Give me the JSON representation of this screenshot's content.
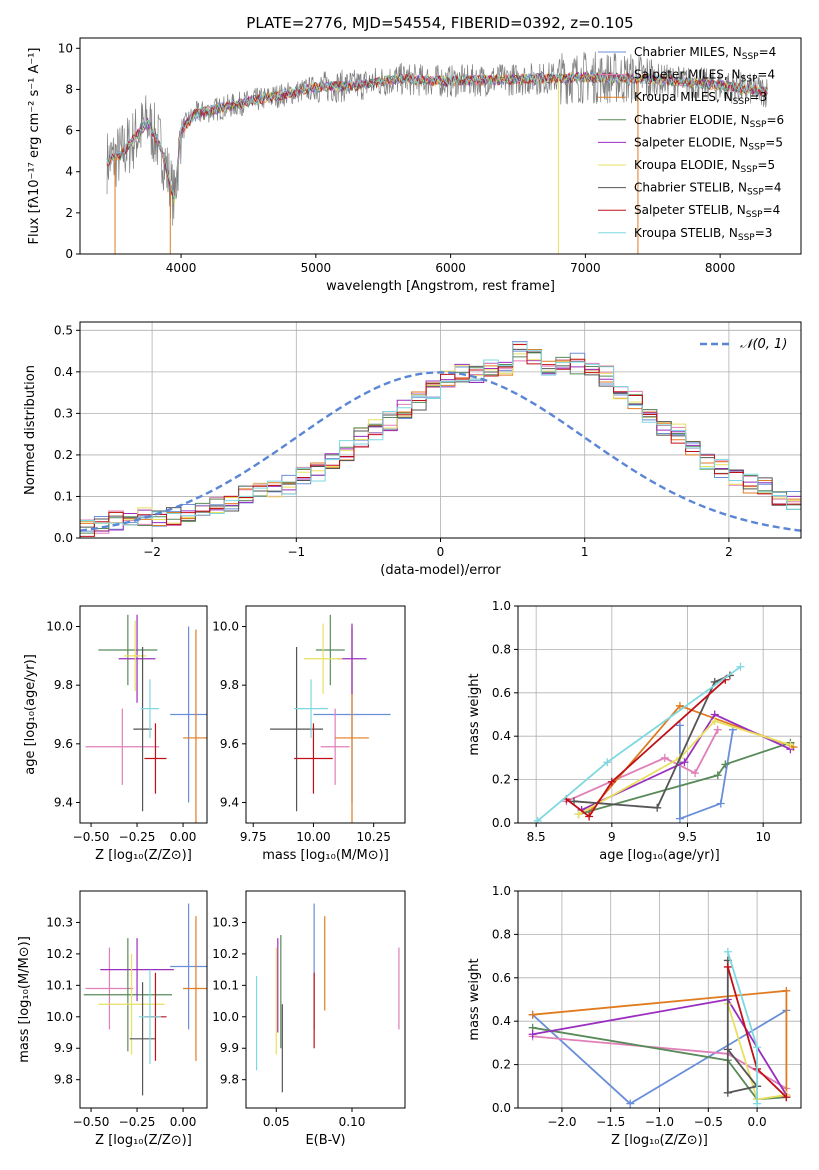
{
  "figure": {
    "title": "PLATE=2776, MJD=54554, FIBERID=0392, z=0.105"
  },
  "colors": {
    "chabrier_miles": "#6a8fd8",
    "salpeter_miles": "#6a8fd8",
    "kroupa_miles": "#e07b21",
    "chabrier_elodie": "#5a8a5a",
    "salpeter_elodie": "#9a2fbf",
    "kroupa_elodie": "#e8e060",
    "chabrier_stelib": "#555555",
    "salpeter_stelib": "#c0101a",
    "kroupa_stelib": "#7fd8e0",
    "data_gray": "#808080",
    "pink": "#e07fb8",
    "grid": "#b0b0b0"
  },
  "legend_entries": [
    {
      "base": "Chabrier MILES, N",
      "sub": "SSP",
      "tail": "=4",
      "color": "#6a8fd8"
    },
    {
      "base": "Salpeter MILES, N",
      "sub": "SSP",
      "tail": "=4",
      "color": "#e07fb8"
    },
    {
      "base": "Kroupa MILES, N",
      "sub": "SSP",
      "tail": "=3",
      "color": "#e07b21"
    },
    {
      "base": "Chabrier ELODIE, N",
      "sub": "SSP",
      "tail": "=6",
      "color": "#5a8a5a"
    },
    {
      "base": "Salpeter ELODIE, N",
      "sub": "SSP",
      "tail": "=5",
      "color": "#9a2fbf"
    },
    {
      "base": "Kroupa ELODIE, N",
      "sub": "SSP",
      "tail": "=5",
      "color": "#e8e060"
    },
    {
      "base": "Chabrier STELIB, N",
      "sub": "SSP",
      "tail": "=4",
      "color": "#555555"
    },
    {
      "base": "Salpeter STELIB, N",
      "sub": "SSP",
      "tail": "=4",
      "color": "#c0101a"
    },
    {
      "base": "Kroupa STELIB, N",
      "sub": "SSP",
      "tail": "=3",
      "color": "#7fd8e0"
    }
  ],
  "chart_data": [
    {
      "type": "line",
      "id": "spectrum",
      "xlabel": "wavelength [Angstrom, rest frame]",
      "ylabel": "Flux [fλ10⁻¹⁷ erg cm⁻² s⁻¹ A⁻¹]",
      "xlim": [
        3250,
        8600
      ],
      "ylim": [
        0,
        10.5
      ],
      "xticks": [
        4000,
        5000,
        6000,
        7000,
        8000
      ],
      "yticks": [
        0,
        2,
        4,
        6,
        8,
        10
      ],
      "grid": false,
      "legend": "right",
      "continuum_x": [
        3450,
        3550,
        3650,
        3750,
        3850,
        3950,
        4000,
        4100,
        4300,
        4500,
        4800,
        5000,
        5300,
        5600,
        6000,
        6500,
        7000,
        7500,
        8000,
        8350
      ],
      "continuum_y": [
        4.5,
        4.8,
        5.6,
        6.4,
        5.2,
        2.6,
        6.0,
        6.8,
        7.1,
        7.4,
        7.8,
        8.1,
        8.2,
        8.5,
        8.4,
        8.5,
        8.6,
        8.5,
        8.2,
        7.9
      ]
    },
    {
      "type": "histogram",
      "id": "residuals",
      "xlabel": "(data-model)/error",
      "ylabel": "Normed distribution",
      "xlim": [
        -2.5,
        2.5
      ],
      "ylim": [
        0,
        0.52
      ],
      "xticks": [
        -2,
        -1,
        0,
        1,
        2
      ],
      "yticks": [
        0.0,
        0.1,
        0.2,
        0.3,
        0.4,
        0.5
      ],
      "grid": true,
      "legend": "top-right",
      "legend_label": "𝒩(0, 1)",
      "bin_width": 0.1,
      "bin_start": -2.5,
      "hist_values": [
        0.02,
        0.03,
        0.04,
        0.04,
        0.05,
        0.05,
        0.05,
        0.06,
        0.07,
        0.08,
        0.09,
        0.1,
        0.11,
        0.12,
        0.13,
        0.15,
        0.16,
        0.18,
        0.21,
        0.24,
        0.26,
        0.28,
        0.31,
        0.33,
        0.36,
        0.38,
        0.4,
        0.39,
        0.41,
        0.4,
        0.45,
        0.44,
        0.41,
        0.43,
        0.42,
        0.4,
        0.39,
        0.36,
        0.33,
        0.3,
        0.27,
        0.25,
        0.22,
        0.19,
        0.17,
        0.15,
        0.13,
        0.12,
        0.1,
        0.09,
        0.08,
        0.07,
        0.06,
        0.05,
        0.05,
        0.04,
        0.04,
        0.04,
        0.03,
        0.03
      ]
    },
    {
      "type": "errorbar",
      "id": "age_vs_z",
      "xlabel": "Z [log₁₀(Z/Z⊙)]",
      "ylabel": "age  [log₁₀(age/yr)]",
      "xlim": [
        -0.56,
        0.13
      ],
      "ylim": [
        9.33,
        10.07
      ],
      "xticks": [
        -0.5,
        -0.25,
        0.0
      ],
      "xtick_labels": [
        "−0.50",
        "−0.25",
        "0.00"
      ],
      "yticks": [
        9.4,
        9.6,
        9.8,
        10.0
      ],
      "points": [
        {
          "x": 0.03,
          "y": 9.7,
          "xerr": 0.1,
          "yerr": 0.3,
          "color": "#6a8fd8"
        },
        {
          "x": -0.33,
          "y": 9.59,
          "xerr": 0.2,
          "yerr": 0.13,
          "color": "#e07fb8"
        },
        {
          "x": 0.07,
          "y": 9.62,
          "xerr": 0.07,
          "yerr": 0.37,
          "color": "#e07b21"
        },
        {
          "x": -0.3,
          "y": 9.92,
          "xerr": 0.16,
          "yerr": 0.12,
          "color": "#5a8a5a"
        },
        {
          "x": -0.25,
          "y": 9.89,
          "xerr": 0.1,
          "yerr": 0.15,
          "color": "#9a2fbf"
        },
        {
          "x": -0.26,
          "y": 9.9,
          "xerr": 0.06,
          "yerr": 0.12,
          "color": "#e8e060"
        },
        {
          "x": -0.22,
          "y": 9.65,
          "xerr": 0.05,
          "yerr": 0.28,
          "color": "#555555"
        },
        {
          "x": -0.15,
          "y": 9.55,
          "xerr": 0.06,
          "yerr": 0.12,
          "color": "#c0101a"
        },
        {
          "x": -0.18,
          "y": 9.72,
          "xerr": 0.05,
          "yerr": 0.1,
          "color": "#7fd8e0"
        }
      ]
    },
    {
      "type": "errorbar",
      "id": "age_vs_mass",
      "xlabel": "mass [log₁₀(M/M⊙)]",
      "ylabel": "",
      "xlim": [
        9.72,
        10.38
      ],
      "ylim": [
        9.33,
        10.07
      ],
      "xticks": [
        9.75,
        10.0,
        10.25
      ],
      "xtick_labels": [
        "9.75",
        "10.00",
        "10.25"
      ],
      "yticks": [
        9.4,
        9.6,
        9.8,
        10.0
      ],
      "points": [
        {
          "x": 10.16,
          "y": 9.7,
          "xerr": 0.16,
          "yerr": 0.3,
          "color": "#6a8fd8"
        },
        {
          "x": 10.09,
          "y": 9.59,
          "xerr": 0.06,
          "yerr": 0.13,
          "color": "#e07fb8"
        },
        {
          "x": 10.16,
          "y": 9.62,
          "xerr": 0.07,
          "yerr": 0.37,
          "color": "#e07b21"
        },
        {
          "x": 10.07,
          "y": 9.92,
          "xerr": 0.06,
          "yerr": 0.12,
          "color": "#5a8a5a"
        },
        {
          "x": 10.16,
          "y": 9.89,
          "xerr": 0.06,
          "yerr": 0.12,
          "color": "#9a2fbf"
        },
        {
          "x": 10.04,
          "y": 9.89,
          "xerr": 0.08,
          "yerr": 0.12,
          "color": "#e8e060"
        },
        {
          "x": 9.93,
          "y": 9.65,
          "xerr": 0.11,
          "yerr": 0.28,
          "color": "#555555"
        },
        {
          "x": 10.0,
          "y": 9.55,
          "xerr": 0.08,
          "yerr": 0.12,
          "color": "#c0101a"
        },
        {
          "x": 9.99,
          "y": 9.72,
          "xerr": 0.07,
          "yerr": 0.1,
          "color": "#7fd8e0"
        }
      ]
    },
    {
      "type": "line",
      "id": "mass_weight_vs_age",
      "xlabel": "age  [log₁₀(age/yr)]",
      "ylabel": "mass weight",
      "xlim": [
        8.38,
        10.25
      ],
      "ylim": [
        0,
        1
      ],
      "xticks": [
        8.5,
        9.0,
        9.5,
        10.0
      ],
      "yticks": [
        0.0,
        0.2,
        0.4,
        0.6,
        0.8,
        1.0
      ],
      "grid": true,
      "series": [
        {
          "x": [
            9.45,
            9.45,
            9.72,
            9.8
          ],
          "y": [
            0.45,
            0.02,
            0.09,
            0.43
          ],
          "color": "#6a8fd8"
        },
        {
          "x": [
            9.7,
            9.55,
            9.35,
            8.7
          ],
          "y": [
            0.43,
            0.23,
            0.3,
            0.1
          ],
          "color": "#e07fb8"
        },
        {
          "x": [
            8.85,
            9.45,
            10.2
          ],
          "y": [
            0.05,
            0.54,
            0.35
          ],
          "color": "#e07b21"
        },
        {
          "x": [
            8.78,
            9.7,
            9.75,
            10.18
          ],
          "y": [
            0.04,
            0.22,
            0.27,
            0.37
          ],
          "color": "#5a8a5a"
        },
        {
          "x": [
            8.8,
            9.48,
            9.68,
            10.18
          ],
          "y": [
            0.06,
            0.28,
            0.5,
            0.34
          ],
          "color": "#9a2fbf"
        },
        {
          "x": [
            8.78,
            9.45,
            9.68,
            10.18
          ],
          "y": [
            0.04,
            0.3,
            0.47,
            0.36
          ],
          "color": "#e8e060"
        },
        {
          "x": [
            8.75,
            9.3,
            9.68,
            9.78
          ],
          "y": [
            0.1,
            0.07,
            0.65,
            0.68
          ],
          "color": "#555555"
        },
        {
          "x": [
            8.7,
            8.85,
            9.0,
            9.75
          ],
          "y": [
            0.11,
            0.03,
            0.19,
            0.66
          ],
          "color": "#c0101a"
        },
        {
          "x": [
            8.51,
            8.97,
            9.85
          ],
          "y": [
            0.01,
            0.28,
            0.72
          ],
          "color": "#7fd8e0"
        }
      ]
    },
    {
      "type": "errorbar",
      "id": "mass_vs_z",
      "xlabel": "Z [log₁₀(Z/Z⊙)]",
      "ylabel": "mass [log₁₀(M/M⊙)]",
      "xlim": [
        -0.56,
        0.13
      ],
      "ylim": [
        9.71,
        10.4
      ],
      "xticks": [
        -0.5,
        -0.25,
        0.0
      ],
      "xtick_labels": [
        "−0.50",
        "−0.25",
        "0.00"
      ],
      "yticks": [
        9.8,
        9.9,
        10.0,
        10.1,
        10.2,
        10.3
      ],
      "points": [
        {
          "x": 0.03,
          "y": 10.16,
          "xerr": 0.1,
          "yerr": 0.2,
          "color": "#6a8fd8"
        },
        {
          "x": -0.4,
          "y": 10.09,
          "xerr": 0.13,
          "yerr": 0.13,
          "color": "#e07fb8"
        },
        {
          "x": 0.07,
          "y": 10.09,
          "xerr": 0.07,
          "yerr": 0.23,
          "color": "#e07b21"
        },
        {
          "x": -0.3,
          "y": 10.07,
          "xerr": 0.24,
          "yerr": 0.18,
          "color": "#5a8a5a"
        },
        {
          "x": -0.25,
          "y": 10.15,
          "xerr": 0.2,
          "yerr": 0.1,
          "color": "#9a2fbf"
        },
        {
          "x": -0.28,
          "y": 10.04,
          "xerr": 0.18,
          "yerr": 0.16,
          "color": "#e8e060"
        },
        {
          "x": -0.22,
          "y": 9.93,
          "xerr": 0.07,
          "yerr": 0.18,
          "color": "#555555"
        },
        {
          "x": -0.15,
          "y": 10.0,
          "xerr": 0.06,
          "yerr": 0.14,
          "color": "#c0101a"
        },
        {
          "x": -0.18,
          "y": 10.0,
          "xerr": 0.06,
          "yerr": 0.15,
          "color": "#7fd8e0"
        }
      ]
    },
    {
      "type": "errorbar",
      "id": "mass_vs_ebv",
      "xlabel": "E(B-V)",
      "ylabel": "",
      "xlim": [
        0.03,
        0.135
      ],
      "ylim": [
        9.71,
        10.4
      ],
      "xticks": [
        0.05,
        0.1
      ],
      "xtick_labels": [
        "0.05",
        "0.10"
      ],
      "yticks": [
        9.8,
        9.9,
        10.0,
        10.1,
        10.2,
        10.3
      ],
      "points": [
        {
          "x": 0.075,
          "y": 10.16,
          "xerr": 0,
          "yerr": 0.2,
          "color": "#6a8fd8"
        },
        {
          "x": 0.131,
          "y": 10.09,
          "xerr": 0,
          "yerr": 0.13,
          "color": "#e07fb8"
        },
        {
          "x": 0.082,
          "y": 10.17,
          "xerr": 0,
          "yerr": 0.15,
          "color": "#e07b21"
        },
        {
          "x": 0.053,
          "y": 10.08,
          "xerr": 0,
          "yerr": 0.18,
          "color": "#5a8a5a"
        },
        {
          "x": 0.051,
          "y": 10.1,
          "xerr": 0,
          "yerr": 0.15,
          "color": "#9a2fbf"
        },
        {
          "x": 0.05,
          "y": 10.05,
          "xerr": 0,
          "yerr": 0.17,
          "color": "#e8e060"
        },
        {
          "x": 0.054,
          "y": 9.9,
          "xerr": 0,
          "yerr": 0.14,
          "color": "#555555"
        },
        {
          "x": 0.075,
          "y": 10.02,
          "xerr": 0,
          "yerr": 0.12,
          "color": "#c0101a"
        },
        {
          "x": 0.037,
          "y": 9.98,
          "xerr": 0,
          "yerr": 0.15,
          "color": "#7fd8e0"
        }
      ]
    },
    {
      "type": "line",
      "id": "mass_weight_vs_z",
      "xlabel": "Z [log₁₀(Z/Z⊙)]",
      "ylabel": "mass weight",
      "xlim": [
        -2.45,
        0.45
      ],
      "ylim": [
        0,
        1
      ],
      "xticks": [
        -2.0,
        -1.5,
        -1.0,
        -0.5,
        0.0
      ],
      "xtick_labels": [
        "−2.0",
        "−1.5",
        "−1.0",
        "−0.5",
        "0.0"
      ],
      "yticks": [
        0.0,
        0.2,
        0.4,
        0.6,
        0.8,
        1.0
      ],
      "grid": true,
      "series": [
        {
          "x": [
            0.3,
            -1.3,
            -2.3
          ],
          "y": [
            0.45,
            0.02,
            0.43
          ],
          "color": "#6a8fd8"
        },
        {
          "x": [
            -2.3,
            -0.3,
            0.3
          ],
          "y": [
            0.33,
            0.25,
            0.09
          ],
          "color": "#e07fb8"
        },
        {
          "x": [
            -2.3,
            0.3,
            0.3
          ],
          "y": [
            0.43,
            0.54,
            0.05
          ],
          "color": "#e07b21"
        },
        {
          "x": [
            -2.3,
            -0.3,
            0.0,
            0.3
          ],
          "y": [
            0.37,
            0.22,
            0.04,
            0.05
          ],
          "color": "#5a8a5a"
        },
        {
          "x": [
            -2.3,
            -0.3,
            0.3
          ],
          "y": [
            0.34,
            0.5,
            0.06
          ],
          "color": "#9a2fbf"
        },
        {
          "x": [
            -0.3,
            0.0,
            0.3
          ],
          "y": [
            0.48,
            0.04,
            0.06
          ],
          "color": "#e8e060"
        },
        {
          "x": [
            -0.3,
            -0.3,
            0.0,
            0.0,
            -0.3
          ],
          "y": [
            0.68,
            0.07,
            0.1,
            0.1,
            0.27
          ],
          "color": "#555555"
        },
        {
          "x": [
            -0.3,
            0.0,
            0.3
          ],
          "y": [
            0.65,
            0.18,
            0.05
          ],
          "color": "#c0101a"
        },
        {
          "x": [
            -0.3,
            0.0,
            0.0
          ],
          "y": [
            0.72,
            0.28,
            0.02
          ],
          "color": "#7fd8e0"
        }
      ]
    }
  ]
}
